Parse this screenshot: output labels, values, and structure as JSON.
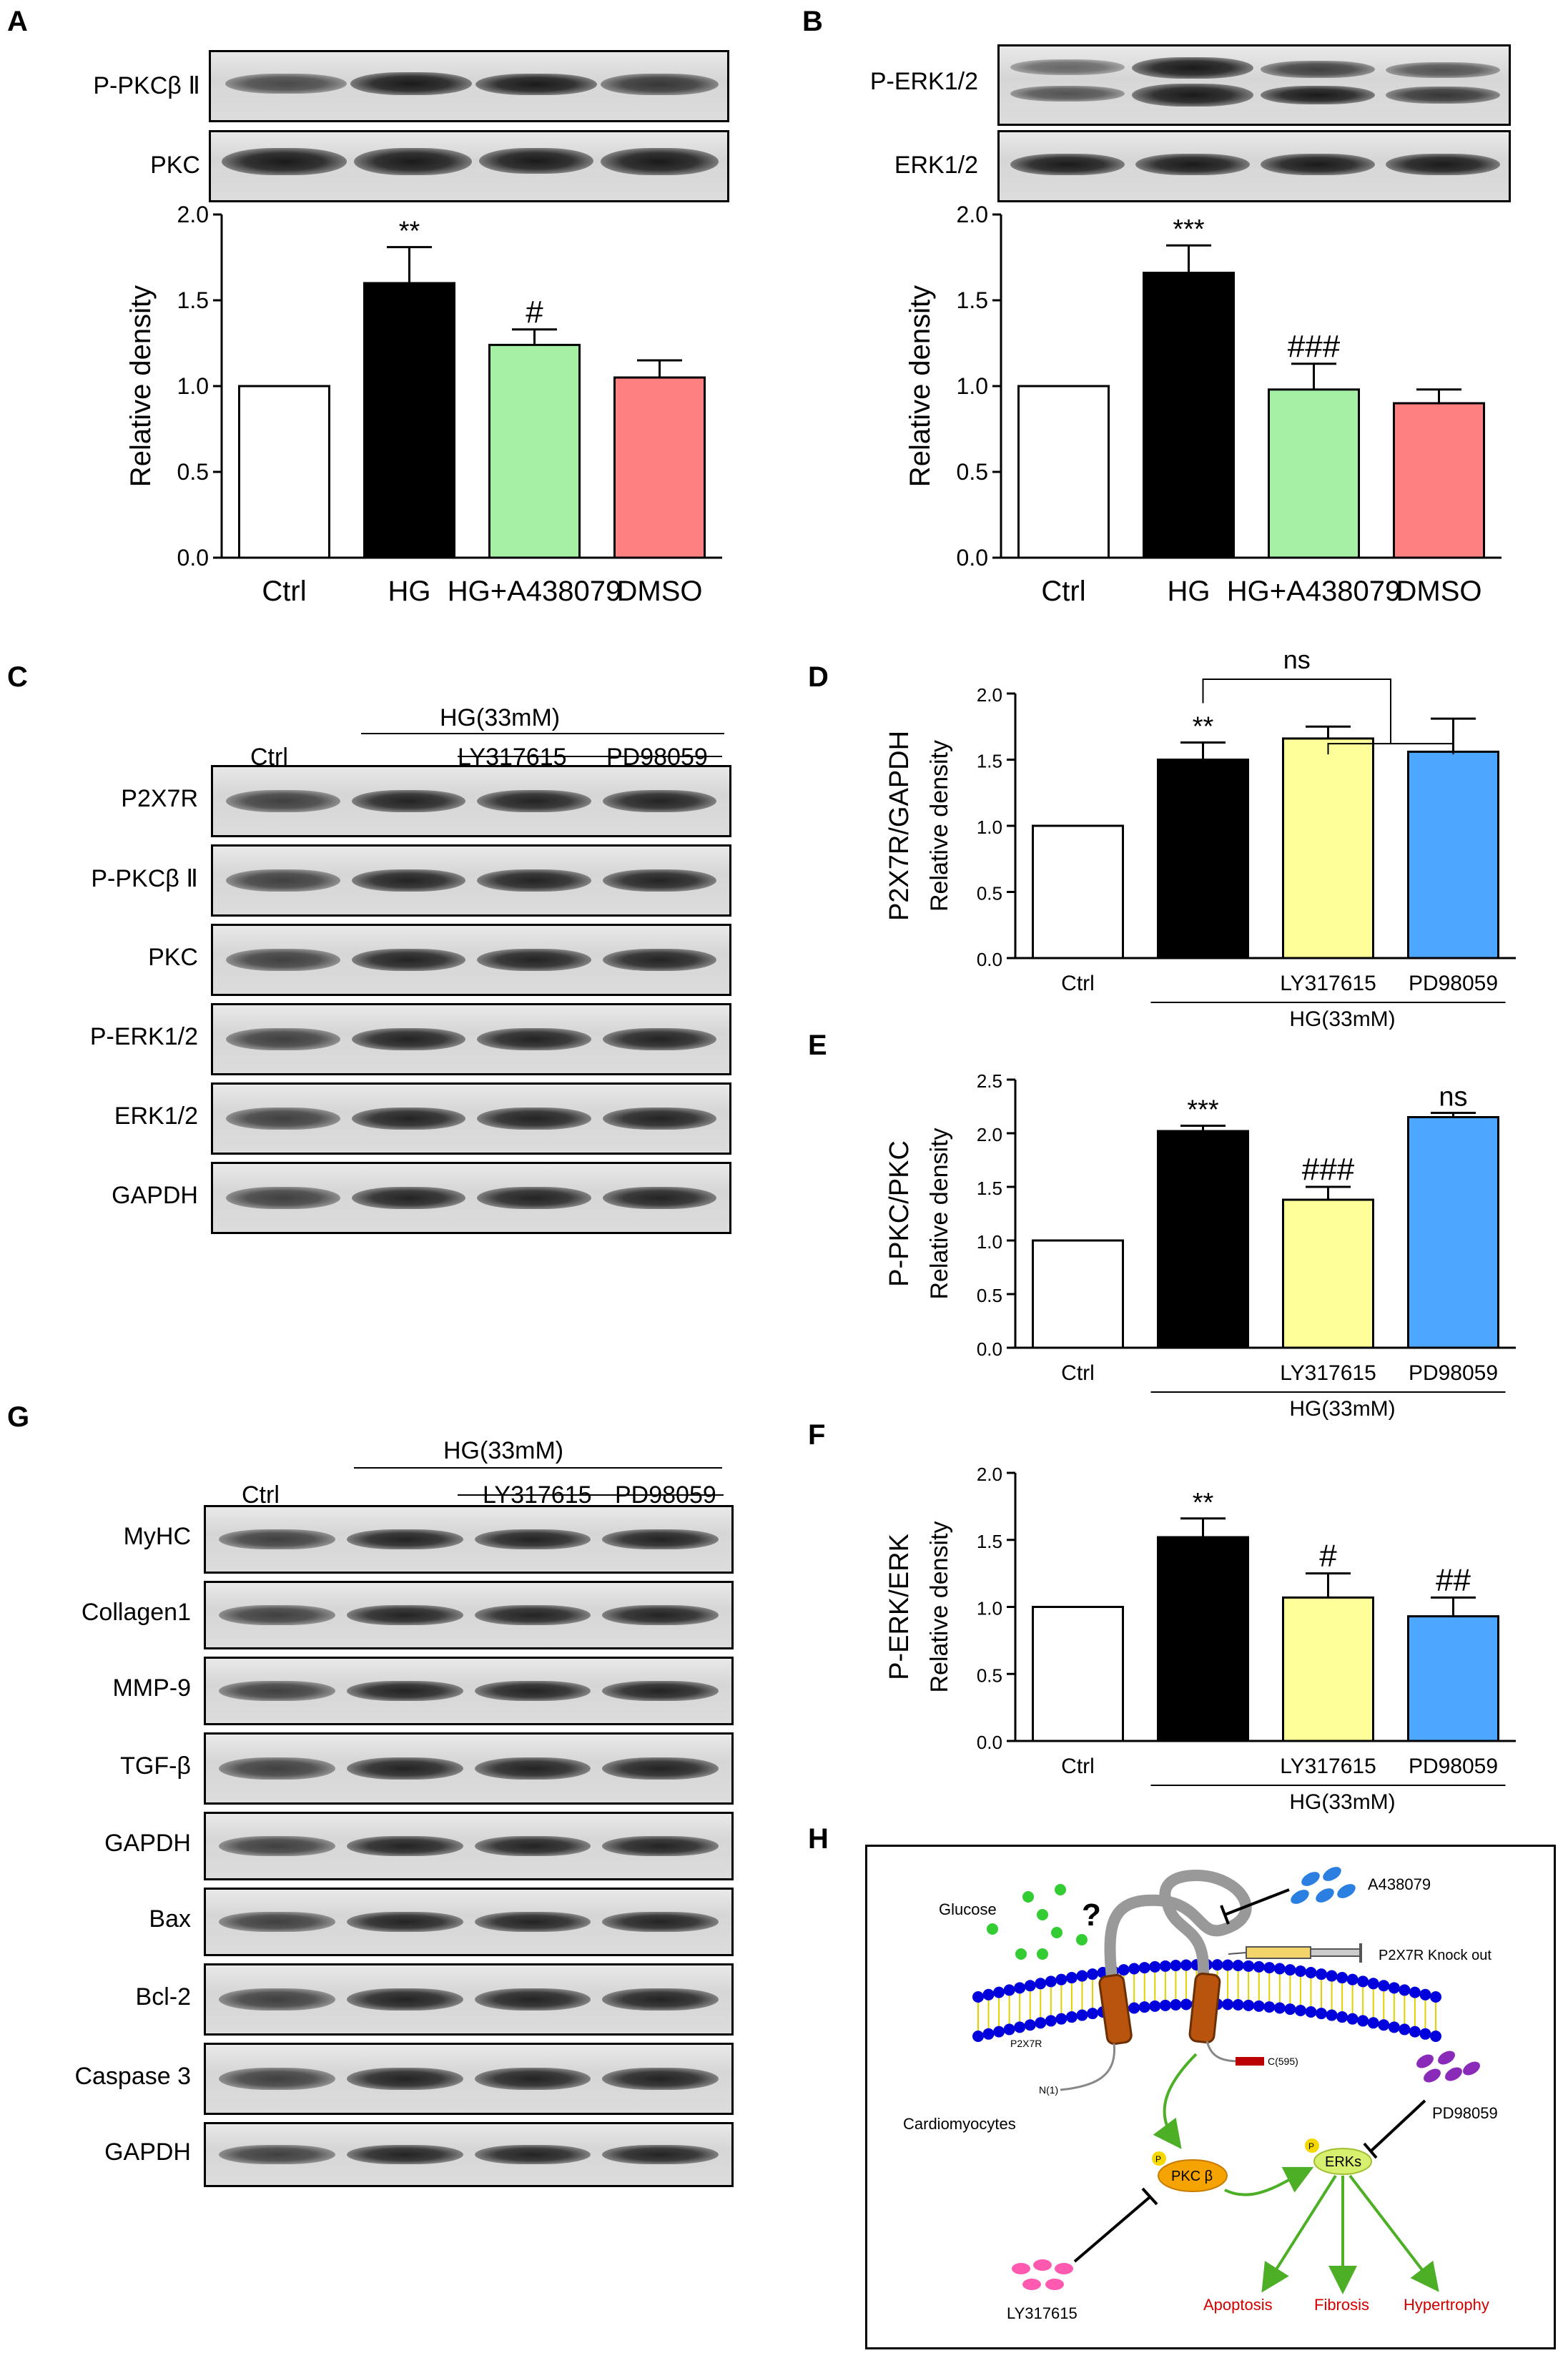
{
  "panels": {
    "A": "A",
    "B": "B",
    "C": "C",
    "D": "D",
    "E": "E",
    "F": "F",
    "G": "G",
    "H": "H"
  },
  "blots": {
    "A": {
      "rows": [
        "P-PKCβ Ⅱ",
        "PKC"
      ]
    },
    "B": {
      "rows": [
        "P-ERK1/2",
        "ERK1/2"
      ]
    },
    "C": {
      "header": "HG(33mM)",
      "lanes": [
        "Ctrl",
        "LY317615",
        "PD98059"
      ],
      "rows": [
        "P2X7R",
        "P-PKCβ Ⅱ",
        "PKC",
        "P-ERK1/2",
        "ERK1/2",
        "GAPDH"
      ]
    },
    "G": {
      "header": "HG(33mM)",
      "lanes": [
        "Ctrl",
        "LY317615",
        "PD98059"
      ],
      "rows": [
        "MyHC",
        "Collagen1",
        "MMP-9",
        "TGF-β",
        "GAPDH",
        "Bax",
        "Bcl-2",
        "Caspase 3",
        "GAPDH"
      ]
    }
  },
  "chart_data": [
    {
      "panel": "A",
      "type": "bar",
      "categories": [
        "Ctrl",
        "HG",
        "HG+A438079",
        "DMSO"
      ],
      "values": [
        1.0,
        1.6,
        1.24,
        1.05
      ],
      "errors": [
        0,
        0.21,
        0.09,
        0.1
      ],
      "colors": [
        "#ffffff",
        "#000000",
        "#a6f0a6",
        "#ff8080"
      ],
      "sig": [
        "",
        "**",
        "#",
        ""
      ],
      "ylabel": "Relative density",
      "ylim": [
        0,
        2.0
      ],
      "yticks": [
        "0.0",
        "0.5",
        "1.0",
        "1.5",
        "2.0"
      ]
    },
    {
      "panel": "B",
      "type": "bar",
      "categories": [
        "Ctrl",
        "HG",
        "HG+A438079",
        "DMSO"
      ],
      "values": [
        1.0,
        1.66,
        0.98,
        0.9
      ],
      "errors": [
        0,
        0.16,
        0.15,
        0.08
      ],
      "colors": [
        "#ffffff",
        "#000000",
        "#a6f0a6",
        "#ff8080"
      ],
      "sig": [
        "",
        "***",
        "###",
        ""
      ],
      "ylabel": "Relative density",
      "ylim": [
        0,
        2.0
      ],
      "yticks": [
        "0.0",
        "0.5",
        "1.0",
        "1.5",
        "2.0"
      ]
    },
    {
      "panel": "D",
      "type": "bar",
      "categories": [
        "Ctrl",
        "",
        "LY317615",
        "PD98059"
      ],
      "values": [
        1.0,
        1.5,
        1.66,
        1.56
      ],
      "errors": [
        0,
        0.13,
        0.09,
        0.25
      ],
      "colors": [
        "#ffffff",
        "#000000",
        "#ffff99",
        "#4da6ff"
      ],
      "sig": [
        "",
        "**",
        "",
        ""
      ],
      "ns_bracket": "ns",
      "group_label": "HG(33mM)",
      "ylabel": "Relative density",
      "ylabel2": "P2X7R/GAPDH",
      "ylim": [
        0,
        2.0
      ],
      "yticks": [
        "0.0",
        "0.5",
        "1.0",
        "1.5",
        "2.0"
      ]
    },
    {
      "panel": "E",
      "type": "bar",
      "categories": [
        "Ctrl",
        "",
        "LY317615",
        "PD98059"
      ],
      "values": [
        1.0,
        2.02,
        1.38,
        2.15
      ],
      "errors": [
        0,
        0.05,
        0.12,
        0.04
      ],
      "colors": [
        "#ffffff",
        "#000000",
        "#ffff99",
        "#4da6ff"
      ],
      "sig": [
        "",
        "***",
        "###",
        "ns"
      ],
      "group_label": "HG(33mM)",
      "ylabel": "Relative density",
      "ylabel2": "P-PKC/PKC",
      "ylim": [
        0,
        2.5
      ],
      "yticks": [
        "0.0",
        "0.5",
        "1.0",
        "1.5",
        "2.0",
        "2.5"
      ]
    },
    {
      "panel": "F",
      "type": "bar",
      "categories": [
        "Ctrl",
        "",
        "LY317615",
        "PD98059"
      ],
      "values": [
        1.0,
        1.52,
        1.07,
        0.93
      ],
      "errors": [
        0,
        0.14,
        0.18,
        0.14
      ],
      "colors": [
        "#ffffff",
        "#000000",
        "#ffff99",
        "#4da6ff"
      ],
      "sig": [
        "",
        "**",
        "#",
        "##"
      ],
      "group_label": "HG(33mM)",
      "ylabel": "Relative density",
      "ylabel2": "P-ERK/ERK",
      "ylim": [
        0,
        2.0
      ],
      "yticks": [
        "0.0",
        "0.5",
        "1.0",
        "1.5",
        "2.0"
      ]
    }
  ],
  "diagram": {
    "glucose": "Glucose",
    "a438079": "A438079",
    "knockout": "P2X7R Knock out",
    "p2x7r": "P2X7R",
    "n1": "N(1)",
    "c595": "C(595)",
    "cardio": "Cardiomyocytes",
    "pkc": "PKC β",
    "erks": "ERKs",
    "p": "P",
    "pd": "PD98059",
    "ly": "LY317615",
    "question": "?",
    "outcomes": [
      "Apoptosis",
      "Fibrosis",
      "Hypertrophy"
    ],
    "colors": {
      "arrow": "#4caf26",
      "outcome": "#d40000",
      "membrane": "#0000dd",
      "glucose": "#33cc33"
    }
  }
}
